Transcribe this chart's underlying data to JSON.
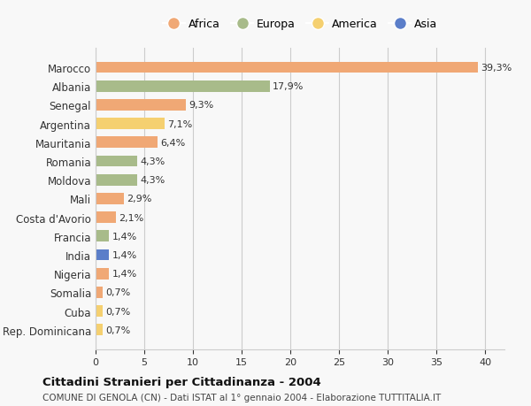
{
  "countries": [
    "Marocco",
    "Albania",
    "Senegal",
    "Argentina",
    "Mauritania",
    "Romania",
    "Moldova",
    "Mali",
    "Costa d'Avorio",
    "Francia",
    "India",
    "Nigeria",
    "Somalia",
    "Cuba",
    "Rep. Dominicana"
  ],
  "values": [
    39.3,
    17.9,
    9.3,
    7.1,
    6.4,
    4.3,
    4.3,
    2.9,
    2.1,
    1.4,
    1.4,
    1.4,
    0.7,
    0.7,
    0.7
  ],
  "labels": [
    "39,3%",
    "17,9%",
    "9,3%",
    "7,1%",
    "6,4%",
    "4,3%",
    "4,3%",
    "2,9%",
    "2,1%",
    "1,4%",
    "1,4%",
    "1,4%",
    "0,7%",
    "0,7%",
    "0,7%"
  ],
  "colors": [
    "#F0A875",
    "#A8BB8A",
    "#F0A875",
    "#F5D070",
    "#F0A875",
    "#A8BB8A",
    "#A8BB8A",
    "#F0A875",
    "#F0A875",
    "#A8BB8A",
    "#5B7EC9",
    "#F0A875",
    "#F0A875",
    "#F5D070",
    "#F5D070"
  ],
  "legend_labels": [
    "Africa",
    "Europa",
    "America",
    "Asia"
  ],
  "legend_colors": [
    "#F0A875",
    "#A8BB8A",
    "#F5D070",
    "#5B7EC9"
  ],
  "xlim": [
    0,
    42
  ],
  "xticks": [
    0,
    5,
    10,
    15,
    20,
    25,
    30,
    35,
    40
  ],
  "title": "Cittadini Stranieri per Cittadinanza - 2004",
  "subtitle": "COMUNE DI GENOLA (CN) - Dati ISTAT al 1° gennaio 2004 - Elaborazione TUTTITALIA.IT",
  "bg_color": "#F8F8F8",
  "bar_height": 0.6,
  "grid_color": "#CCCCCC"
}
